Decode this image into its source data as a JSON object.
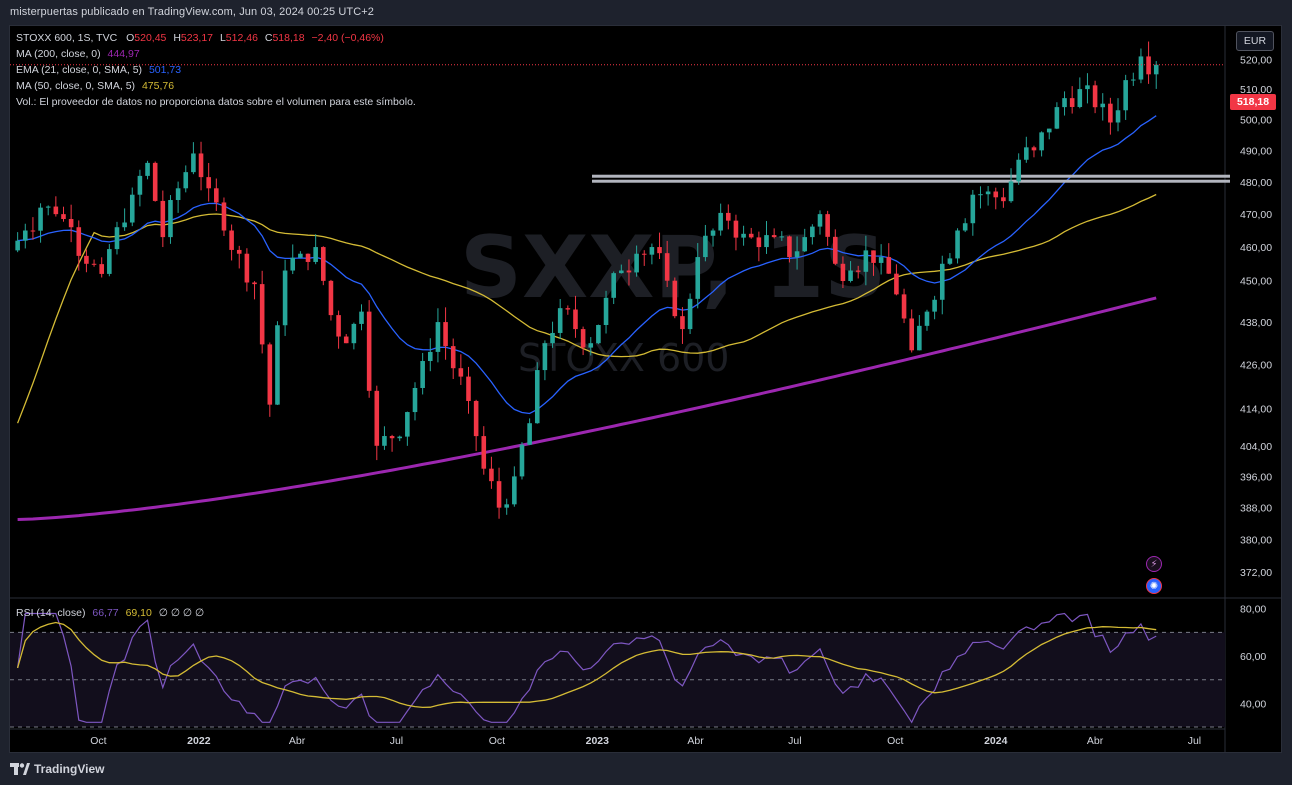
{
  "header": {
    "published": "misterpuertas publicado en TradingView.com, Jun 03, 2024 00:25 UTC+2"
  },
  "currency": "EUR",
  "last_price_label": "518,18",
  "legend": {
    "symbol": "STOXX 600, 1S, TVC",
    "o_label": "O",
    "o": "520,45",
    "h_label": "H",
    "h": "523,17",
    "l_label": "L",
    "l": "512,46",
    "c_label": "C",
    "c": "518,18",
    "change": "−2,40 (−0,46%)",
    "ma200_label": "MA (200, close, 0)",
    "ma200_value": "444,97",
    "ema21_label": "EMA (21, close, 0, SMA, 5)",
    "ema21_value": "501,73",
    "ma50_label": "MA (50, close, 0, SMA, 5)",
    "ma50_value": "475,76",
    "vol_text": "Vol.: El proveedor de datos no proporciona datos sobre el volumen para este símbolo."
  },
  "rsi_legend": {
    "label": "RSI (14, close)",
    "value1": "66,77",
    "value2": "69,10",
    "extra": "∅ ∅ ∅ ∅"
  },
  "watermark": {
    "symbol": "SXXP, 1S",
    "name": "STOXX 600"
  },
  "footer": {
    "brand": "TradingView",
    "icon": "tradingview-logo-icon"
  },
  "event_icons": [
    "lightning-icon",
    "dividend-icon"
  ],
  "colors": {
    "up": "#26a69a",
    "down": "#f23645",
    "ema21": "#2962ff",
    "ma50": "#d4bb35",
    "ma200": "#9c27b0",
    "rsi": "#7e57c2",
    "rsi_ma": "#d4bb35",
    "support": "#b2b5be"
  },
  "chart_data": {
    "type": "candlestick",
    "title": "STOXX 600, 1S, TVC",
    "y_scale": "log",
    "ylim": [
      366,
      528
    ],
    "y_ticks": [
      "520,00",
      "510,00",
      "500,00",
      "490,00",
      "480,00",
      "470,00",
      "460,00",
      "450,00",
      "438,00",
      "426,00",
      "414,00",
      "404,00",
      "396,00",
      "388,00",
      "380,00",
      "372,00"
    ],
    "x_ticks": [
      "Oct",
      "2022",
      "Abr",
      "Jul",
      "Oct",
      "2023",
      "Abr",
      "Jul",
      "Oct",
      "2024",
      "Abr",
      "Jul"
    ],
    "xlim": [
      "2021-07-12",
      "2024-07-29"
    ],
    "support_line": 481,
    "candle_closes": [
      [
        "2021-07-12",
        459
      ],
      [
        "2021-07-26",
        465
      ],
      [
        "2021-08-09",
        472
      ],
      [
        "2021-08-23",
        470
      ],
      [
        "2021-09-06",
        466
      ],
      [
        "2021-09-20",
        455
      ],
      [
        "2021-10-04",
        452
      ],
      [
        "2021-10-18",
        466
      ],
      [
        "2021-11-01",
        476
      ],
      [
        "2021-11-15",
        486
      ],
      [
        "2021-11-29",
        463
      ],
      [
        "2021-12-13",
        478
      ],
      [
        "2021-12-27",
        489
      ],
      [
        "2022-01-10",
        478
      ],
      [
        "2022-01-24",
        465
      ],
      [
        "2022-02-07",
        458
      ],
      [
        "2022-02-21",
        449
      ],
      [
        "2022-03-07",
        415
      ],
      [
        "2022-03-21",
        453
      ],
      [
        "2022-04-04",
        458
      ],
      [
        "2022-04-18",
        460
      ],
      [
        "2022-05-02",
        440
      ],
      [
        "2022-05-16",
        432
      ],
      [
        "2022-05-30",
        441
      ],
      [
        "2022-06-13",
        404
      ],
      [
        "2022-06-27",
        406
      ],
      [
        "2022-07-11",
        413
      ],
      [
        "2022-07-25",
        427
      ],
      [
        "2022-08-08",
        438
      ],
      [
        "2022-08-22",
        425
      ],
      [
        "2022-09-05",
        416
      ],
      [
        "2022-09-19",
        398
      ],
      [
        "2022-10-03",
        388
      ],
      [
        "2022-10-17",
        396
      ],
      [
        "2022-10-31",
        410
      ],
      [
        "2022-11-14",
        432
      ],
      [
        "2022-11-28",
        442
      ],
      [
        "2022-12-12",
        436
      ],
      [
        "2022-12-26",
        432
      ],
      [
        "2023-01-09",
        445
      ],
      [
        "2023-01-23",
        453
      ],
      [
        "2023-02-06",
        458
      ],
      [
        "2023-02-20",
        460
      ],
      [
        "2023-03-06",
        450
      ],
      [
        "2023-03-20",
        436
      ],
      [
        "2023-04-03",
        457
      ],
      [
        "2023-04-17",
        465
      ],
      [
        "2023-05-01",
        468
      ],
      [
        "2023-05-15",
        464
      ],
      [
        "2023-05-29",
        460
      ],
      [
        "2023-06-12",
        463
      ],
      [
        "2023-06-26",
        457
      ],
      [
        "2023-07-10",
        463
      ],
      [
        "2023-07-24",
        470
      ],
      [
        "2023-08-07",
        455
      ],
      [
        "2023-08-21",
        453
      ],
      [
        "2023-09-04",
        459
      ],
      [
        "2023-09-18",
        457
      ],
      [
        "2023-10-02",
        446
      ],
      [
        "2023-10-16",
        430
      ],
      [
        "2023-10-30",
        441
      ],
      [
        "2023-11-13",
        455
      ],
      [
        "2023-11-27",
        465
      ],
      [
        "2023-12-11",
        476
      ],
      [
        "2023-12-25",
        477
      ],
      [
        "2024-01-08",
        474
      ],
      [
        "2024-01-22",
        487
      ],
      [
        "2024-02-05",
        490
      ],
      [
        "2024-02-19",
        497
      ],
      [
        "2024-03-04",
        507
      ],
      [
        "2024-03-18",
        510
      ],
      [
        "2024-04-01",
        504
      ],
      [
        "2024-04-15",
        499
      ],
      [
        "2024-04-29",
        513
      ],
      [
        "2024-05-13",
        521
      ],
      [
        "2024-05-27",
        518.18
      ]
    ],
    "rsi": {
      "ylim": [
        30,
        82
      ],
      "y_ticks": [
        "80,00",
        "60,00",
        "40,00"
      ],
      "levels": [
        70,
        50,
        30
      ],
      "last": [
        66.77,
        69.1
      ]
    }
  }
}
